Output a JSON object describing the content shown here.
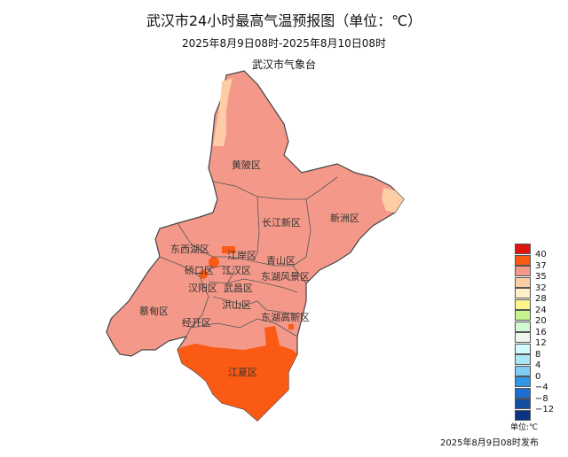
{
  "title": "武汉市24小时最高气温预报图（单位：℃）",
  "subtitle": "2025年8月9日08时-2025年8月10日08时",
  "agency": "武汉市气象台",
  "districts": [
    "黄陂区",
    "新洲区",
    "长江新区",
    "东西湖区",
    "江岸区",
    "硚口区",
    "江汉区",
    "青山区",
    "汉阳区",
    "武昌区",
    "东湖风景区",
    "洪山区",
    "蔡甸区",
    "经开区",
    "东湖高新区",
    "江夏区"
  ],
  "legend": {
    "unit": "单位:℃",
    "levels": [
      {
        "label": "40",
        "color": "#e0140f"
      },
      {
        "label": "37",
        "color": "#fa5a14"
      },
      {
        "label": "35",
        "color": "#f4998a"
      },
      {
        "label": "32",
        "color": "#fdcda6"
      },
      {
        "label": "28",
        "color": "#fff0c8"
      },
      {
        "label": "24",
        "color": "#fcf58a"
      },
      {
        "label": "20",
        "color": "#c3f58c"
      },
      {
        "label": "16",
        "color": "#d2fad2"
      },
      {
        "label": "12",
        "color": "#f0f5eb"
      },
      {
        "label": "8",
        "color": "#d2faff"
      },
      {
        "label": "4",
        "color": "#aae6f5"
      },
      {
        "label": "0",
        "color": "#82cdf5"
      },
      {
        "label": "−4",
        "color": "#3296e6"
      },
      {
        "label": "−8",
        "color": "#1e6ed2"
      },
      {
        "label": "−12",
        "color": "#1450a0"
      },
      {
        "label": "",
        "color": "#0a3282"
      }
    ]
  },
  "issued": "2025年8月9日08时发布"
}
